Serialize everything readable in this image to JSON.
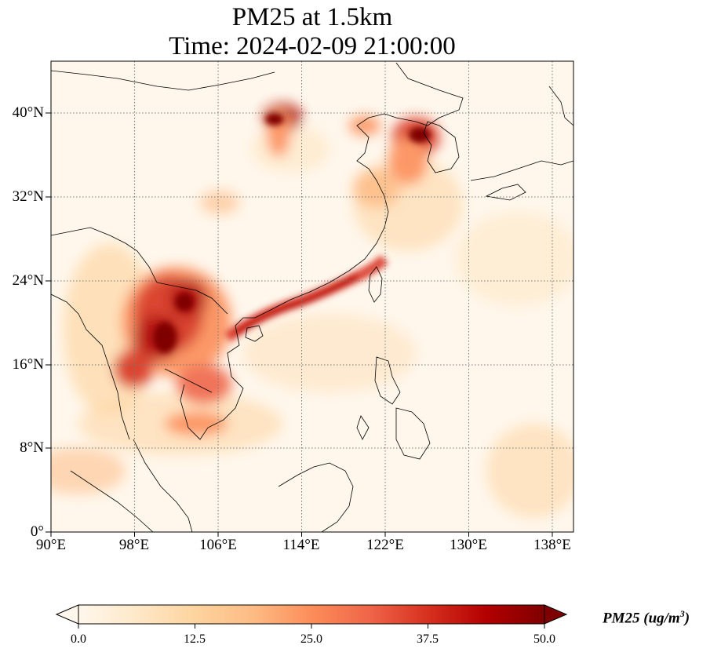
{
  "title": {
    "line1": "PM25 at 1.5km",
    "line2": "Time: 2024-02-09 21:00:00"
  },
  "map": {
    "lon_range": [
      90,
      140
    ],
    "lat_range": [
      0,
      45
    ],
    "gridlines": "dotted",
    "colormap": "OrRd",
    "colors": [
      "#fff7ec",
      "#fee8c8",
      "#fdd49e",
      "#fdbb84",
      "#fc8d59",
      "#ef6548",
      "#d7301f",
      "#b30000",
      "#7f0000"
    ],
    "lat_ticks": [
      "0°",
      "8°N",
      "16°N",
      "24°N",
      "32°N",
      "40°N"
    ],
    "lon_ticks": [
      "90°E",
      "98°E",
      "106°E",
      "114°E",
      "122°E",
      "130°E",
      "138°E"
    ]
  },
  "colorbar": {
    "ticks": [
      "0.0",
      "12.5",
      "25.0",
      "37.5",
      "50.0"
    ],
    "min": 0,
    "max": 50,
    "extend": "both",
    "label_main": "PM25 (ug/m",
    "label_sup": "3",
    "label_end": ")"
  }
}
